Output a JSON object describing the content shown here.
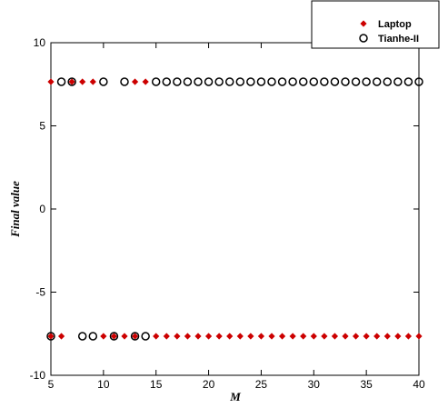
{
  "chart_data": {
    "type": "scatter",
    "xlabel": "M",
    "ylabel": "Final value",
    "xlim": [
      5,
      40
    ],
    "ylim": [
      -10,
      10
    ],
    "x_ticks": [
      "5",
      "10",
      "15",
      "20",
      "25",
      "30",
      "35",
      "40"
    ],
    "y_ticks": [
      "10",
      "5",
      "0",
      "-5",
      "-10"
    ],
    "legend_position": "top-right",
    "series": [
      {
        "name": "Laptop",
        "marker": "diamond",
        "color": "#cc0000",
        "points": [
          [
            5,
            7.65
          ],
          [
            7,
            7.65
          ],
          [
            8,
            7.65
          ],
          [
            9,
            7.65
          ],
          [
            13,
            7.65
          ],
          [
            14,
            7.65
          ],
          [
            5,
            -7.65
          ],
          [
            6,
            -7.65
          ],
          [
            10,
            -7.65
          ],
          [
            11,
            -7.65
          ],
          [
            12,
            -7.65
          ],
          [
            13,
            -7.65
          ],
          [
            15,
            -7.65
          ],
          [
            16,
            -7.65
          ],
          [
            17,
            -7.65
          ],
          [
            18,
            -7.65
          ],
          [
            19,
            -7.65
          ],
          [
            20,
            -7.65
          ],
          [
            21,
            -7.65
          ],
          [
            22,
            -7.65
          ],
          [
            23,
            -7.65
          ],
          [
            24,
            -7.65
          ],
          [
            25,
            -7.65
          ],
          [
            26,
            -7.65
          ],
          [
            27,
            -7.65
          ],
          [
            28,
            -7.65
          ],
          [
            29,
            -7.65
          ],
          [
            30,
            -7.65
          ],
          [
            31,
            -7.65
          ],
          [
            32,
            -7.65
          ],
          [
            33,
            -7.65
          ],
          [
            34,
            -7.65
          ],
          [
            35,
            -7.65
          ],
          [
            36,
            -7.65
          ],
          [
            37,
            -7.65
          ],
          [
            38,
            -7.65
          ],
          [
            39,
            -7.65
          ],
          [
            40,
            -7.65
          ]
        ]
      },
      {
        "name": "Tianhe-II",
        "marker": "circle",
        "color": "#000000",
        "points": [
          [
            6,
            7.65
          ],
          [
            7,
            7.65
          ],
          [
            10,
            7.65
          ],
          [
            12,
            7.65
          ],
          [
            15,
            7.65
          ],
          [
            16,
            7.65
          ],
          [
            17,
            7.65
          ],
          [
            18,
            7.65
          ],
          [
            19,
            7.65
          ],
          [
            20,
            7.65
          ],
          [
            21,
            7.65
          ],
          [
            22,
            7.65
          ],
          [
            23,
            7.65
          ],
          [
            24,
            7.65
          ],
          [
            25,
            7.65
          ],
          [
            26,
            7.65
          ],
          [
            27,
            7.65
          ],
          [
            28,
            7.65
          ],
          [
            29,
            7.65
          ],
          [
            30,
            7.65
          ],
          [
            31,
            7.65
          ],
          [
            32,
            7.65
          ],
          [
            33,
            7.65
          ],
          [
            34,
            7.65
          ],
          [
            35,
            7.65
          ],
          [
            36,
            7.65
          ],
          [
            37,
            7.65
          ],
          [
            38,
            7.65
          ],
          [
            39,
            7.65
          ],
          [
            40,
            7.65
          ],
          [
            5,
            -7.65
          ],
          [
            8,
            -7.65
          ],
          [
            9,
            -7.65
          ],
          [
            11,
            -7.65
          ],
          [
            13,
            -7.65
          ],
          [
            14,
            -7.65
          ]
        ]
      }
    ]
  }
}
